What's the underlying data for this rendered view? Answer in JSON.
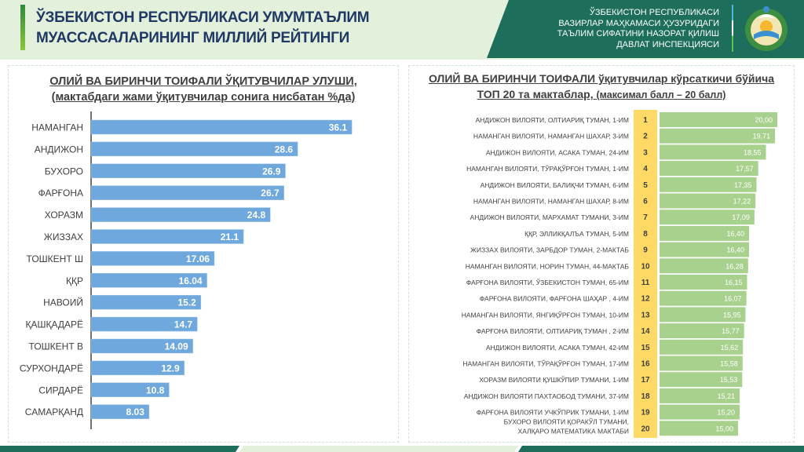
{
  "header": {
    "title_line1": "ЎЗБЕКИСТОН РЕСПУБЛИКАСИ УМУМТАЪЛИМ",
    "title_line2": "МУАССАСАЛАРИНИНГ МИЛЛИЙ РЕЙТИНГИ",
    "org_lines": [
      "ЎЗБЕКИСТОН РЕСПУБЛИКАСИ",
      "ВАЗИРЛАР МАҲКАМАСИ ҲУЗУРИДАГИ",
      "ТАЪЛИМ СИФАТИНИ НАЗОРАТ ҚИЛИШ",
      "ДАВЛАТ ИНСПЕКЦИЯСИ"
    ],
    "emblem_icon": "uzbekistan-state-emblem",
    "colors": {
      "band": "#1d6e5b",
      "background": "#e3f0db",
      "title": "#1f3864"
    }
  },
  "chart_data": [
    {
      "type": "bar",
      "orientation": "horizontal",
      "title": "ОЛИЙ ВА БИРИНЧИ ТОИФАЛИ ЎҚИТУВЧИЛАР УЛУШИ,",
      "subtitle": "(мактабдаги жами ўқитувчилар сонига нисбатан %да)",
      "categories": [
        "НАМАНГАН",
        "АНДИЖОН",
        "БУХОРО",
        "ФАРҒОНА",
        "ХОРАЗМ",
        "ЖИЗЗАХ",
        "ТОШКЕНТ Ш",
        "ҚҚР",
        "НАВОИЙ",
        "ҚАШҚАДАРЁ",
        "ТОШКЕНТ В",
        "СУРХОНДАРЁ",
        "СИРДАРЁ",
        "САМАРҚАНД"
      ],
      "values": [
        36.1,
        28.6,
        26.9,
        26.7,
        24.8,
        21.1,
        17.06,
        16.04,
        15.2,
        14.7,
        14.09,
        12.9,
        10.8,
        8.03
      ],
      "value_labels": [
        "36.1",
        "28.6",
        "26.9",
        "26.7",
        "24.8",
        "21.1",
        "17.06",
        "16.04",
        "15.2",
        "14.7",
        "14.09",
        "12.9",
        "10.8",
        "8.03"
      ],
      "xlim": [
        0,
        40
      ],
      "grid": false,
      "color": "#6fa8dc"
    },
    {
      "type": "bar",
      "orientation": "horizontal",
      "title": "ОЛИЙ ВА БИРИНЧИ ТОИФАЛИ ўқитувчилар кўрсаткичи бўйича",
      "subtitle": "ТОП 20 та мактаблар,",
      "subtitle_note": "(максимал балл – 20 балл)",
      "ranks": [
        "1",
        "2",
        "3",
        "4",
        "5",
        "6",
        "7",
        "8",
        "9",
        "10",
        "11",
        "12",
        "13",
        "14",
        "15",
        "16",
        "17",
        "18",
        "19",
        "20"
      ],
      "categories": [
        "АНДИЖОН ВИЛОЯТИ, ОЛТИАРИҚ ТУМАН, 1-ИМ",
        "НАМАНГАН ВИЛОЯТИ, НАМАНГАН ШАХАР, 3-ИМ",
        "АНДИЖОН ВИЛОЯТИ, АСАКА ТУМАН, 24-ИМ",
        "НАМАНГАН ВИЛОЯТИ, ТЎРАҚЎРҒОН ТУМАН, 1-ИМ",
        "АНДИЖОН ВИЛОЯТИ, БАЛИҚЧИ ТУМАН, 6-ИМ",
        "НАМАНГАН ВИЛОЯТИ, НАМАНГАН ШАХАР, 8-ИМ",
        "АНДИЖОН ВИЛОЯТИ, МАРХАМАТ ТУМАНИ, 3-ИМ",
        "ҚҚР, ЭЛЛИКҚАЛЪА ТУМАН, 5-ИМ",
        "ЖИЗЗАХ ВИЛОЯТИ, ЗАРБДОР ТУМАН, 2-МАКТАБ",
        "НАМАНГАН ВИЛОЯТИ, НОРИН ТУМАН, 44-МАКТАБ",
        "ФАРҒОНА ВИЛОЯТИ, ЎЗБЕКИСТОН ТУМАН, 65-ИМ",
        "ФАРҒОНА ВИЛОЯТИ, ФАРҒОНА ШАҲАР , 4-ИМ",
        "НАМАНГАН ВИЛОЯТИ, ЯНГИҚЎРҒОН ТУМАН, 10-ИМ",
        "ФАРҒОНА ВИЛОЯТИ, ОЛТИАРИҚ ТУМАН , 2-ИМ",
        "АНДИЖОН ВИЛОЯТИ, АСАКА ТУМАН, 42-ИМ",
        "НАМАНГАН ВИЛОЯТИ, ТЎРАҚЎРҒОН ТУМАН, 17-ИМ",
        "ХОРАЗМ ВИЛОЯТИ ҚУШКЎПИР ТУМАНИ, 1-ИМ",
        "АНДИЖОН ВИЛОЯТИ ПАХТАОБОД ТУМАНИ, 37-ИМ",
        "ФАРҒОНА ВИЛОЯТИ УЧКЎПРИК ТУМАНИ, 1-ИМ",
        "БУХОРО ВИЛОЯТИ ҚОРАКЎЛ ТУМАНИ, ХАЛҚАРО МАТЕМАТИКА МАКТАБИ"
      ],
      "values": [
        20.0,
        19.71,
        18.55,
        17.57,
        17.35,
        17.22,
        17.09,
        16.4,
        16.4,
        16.28,
        16.15,
        16.07,
        15.95,
        15.77,
        15.62,
        15.58,
        15.53,
        15.21,
        15.2,
        15.0
      ],
      "value_labels": [
        "20,00",
        "19,71",
        "18,55",
        "17,57",
        "17,35",
        "17,22",
        "17,09",
        "16,40",
        "16,40",
        "16,28",
        "16,15",
        "16,07",
        "15,95",
        "15,77",
        "15,62",
        "15,58",
        "15,53",
        "15,21",
        "15,20",
        "15,00"
      ],
      "xlim": [
        5,
        20
      ],
      "grid": false,
      "color": "#a9d18e",
      "rank_color": "#ffd966"
    }
  ]
}
